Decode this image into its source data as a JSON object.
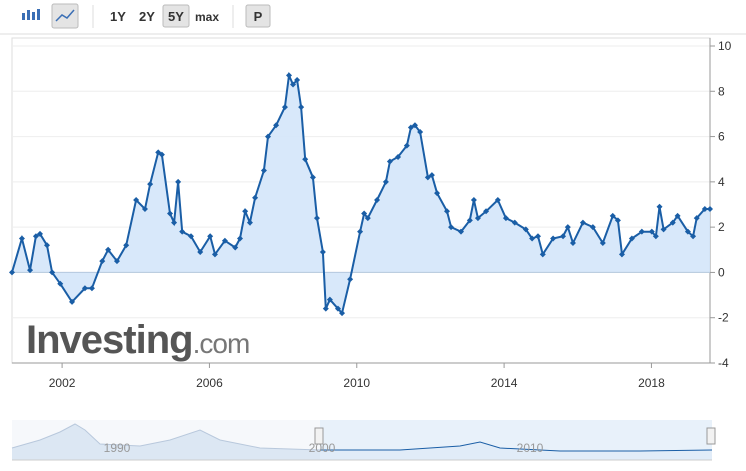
{
  "toolbar": {
    "ranges": [
      "1Y",
      "2Y",
      "5Y",
      "max"
    ],
    "selected_range": 2,
    "extra": "P"
  },
  "chart_data": {
    "type": "line",
    "color": "#1a5ea6",
    "fill": "#d4e6f9",
    "x": [
      2000.64,
      2000.91,
      2001.13,
      2001.29,
      2001.4,
      2001.59,
      2001.73,
      2001.95,
      2002.27,
      2002.62,
      2002.81,
      2003.09,
      2003.25,
      2003.49,
      2003.74,
      2004.01,
      2004.25,
      2004.39,
      2004.61,
      2004.71,
      2004.93,
      2005.04,
      2005.15,
      2005.26,
      2005.5,
      2005.75,
      2006.02,
      2006.15,
      2006.42,
      2006.7,
      2006.83,
      2006.97,
      2007.1,
      2007.24,
      2007.48,
      2007.59,
      2007.81,
      2008.05,
      2008.16,
      2008.27,
      2008.38,
      2008.49,
      2008.6,
      2008.81,
      2008.92,
      2009.08,
      2009.16,
      2009.27,
      2009.49,
      2009.6,
      2009.82,
      2010.09,
      2010.2,
      2010.3,
      2010.55,
      2010.79,
      2010.9,
      2011.12,
      2011.36,
      2011.47,
      2011.58,
      2011.72,
      2011.93,
      2012.04,
      2012.18,
      2012.45,
      2012.56,
      2012.83,
      2013.07,
      2013.18,
      2013.29,
      2013.51,
      2013.83,
      2014.05,
      2014.29,
      2014.59,
      2014.76,
      2014.92,
      2015.05,
      2015.33,
      2015.6,
      2015.73,
      2015.87,
      2016.14,
      2016.41,
      2016.68,
      2016.95,
      2017.09,
      2017.2,
      2017.47,
      2017.74,
      2018.01,
      2018.12,
      2018.22,
      2018.33,
      2018.58,
      2018.71,
      2018.99,
      2019.13,
      2019.23,
      2019.45,
      2019.59
    ],
    "values": [
      0,
      1.5,
      0.1,
      1.6,
      1.7,
      1.2,
      0,
      -0.5,
      -1.3,
      -0.7,
      -0.7,
      0.5,
      1.0,
      0.5,
      1.2,
      3.2,
      2.8,
      3.9,
      5.3,
      5.2,
      2.6,
      2.2,
      4.0,
      1.8,
      1.6,
      0.9,
      1.6,
      0.8,
      1.4,
      1.1,
      1.5,
      2.7,
      2.2,
      3.3,
      4.5,
      6.0,
      6.5,
      7.3,
      8.7,
      8.3,
      8.5,
      7.3,
      5.0,
      4.2,
      2.4,
      0.9,
      -1.6,
      -1.2,
      -1.6,
      -1.8,
      -0.3,
      1.8,
      2.6,
      2.4,
      3.2,
      4.0,
      4.9,
      5.1,
      5.6,
      6.4,
      6.5,
      6.2,
      4.2,
      4.3,
      3.5,
      2.7,
      2.0,
      1.8,
      2.3,
      3.2,
      2.4,
      2.7,
      3.2,
      2.4,
      2.2,
      1.9,
      1.5,
      1.6,
      0.8,
      1.5,
      1.6,
      2.0,
      1.3,
      2.2,
      2.0,
      1.3,
      2.5,
      2.3,
      0.8,
      1.5,
      1.8,
      1.8,
      1.6,
      2.9,
      1.9,
      2.2,
      2.5,
      1.8,
      1.6,
      2.4,
      2.8,
      2.8
    ],
    "xlim": [
      2000.64,
      2019.59
    ],
    "xticks": [
      2002,
      2006,
      2010,
      2014,
      2018
    ],
    "ylim": [
      -4,
      10
    ],
    "yticks": [
      -4,
      -2,
      0,
      2,
      4,
      6,
      8,
      10
    ],
    "grid": true
  },
  "watermark": {
    "name": "Investing",
    "suffix": ".com"
  },
  "navigator": {
    "labels": [
      "1990",
      "2000",
      "2010"
    ]
  }
}
